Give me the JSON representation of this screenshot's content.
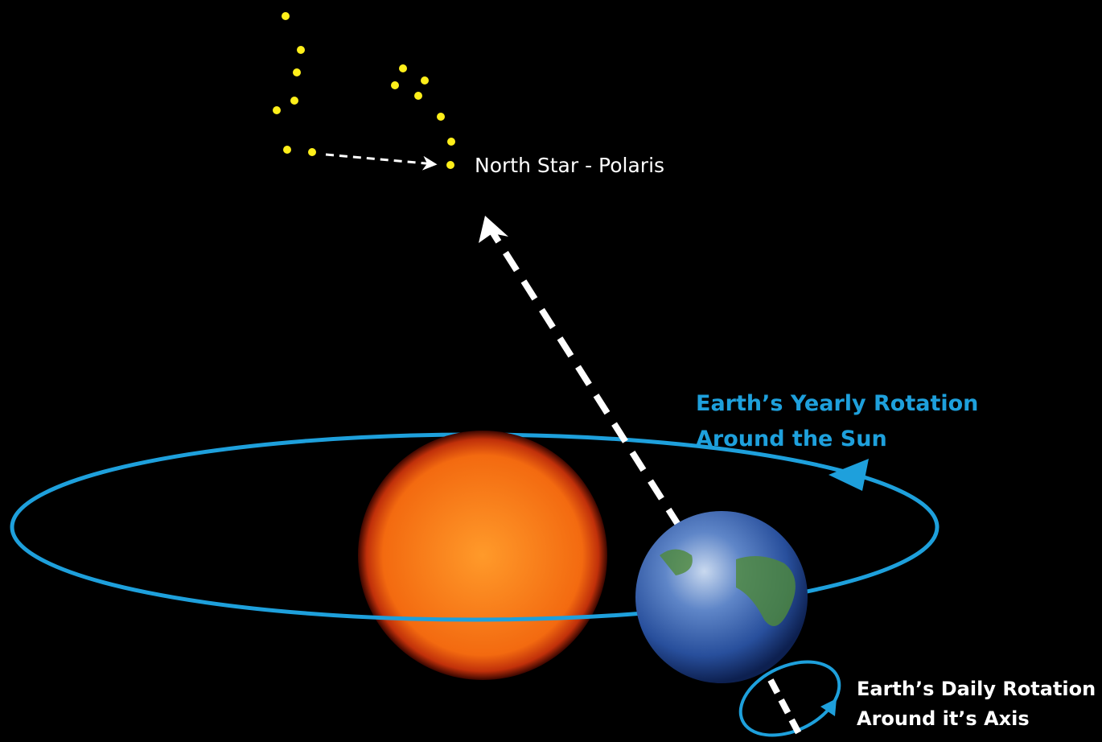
{
  "labels": {
    "polaris": "North Star - Polaris",
    "yearly": [
      "Earth’s Yearly Rotation",
      "Around the Sun"
    ],
    "daily": [
      "Earth’s Daily Rotation",
      "Around it’s Axis"
    ]
  }
}
